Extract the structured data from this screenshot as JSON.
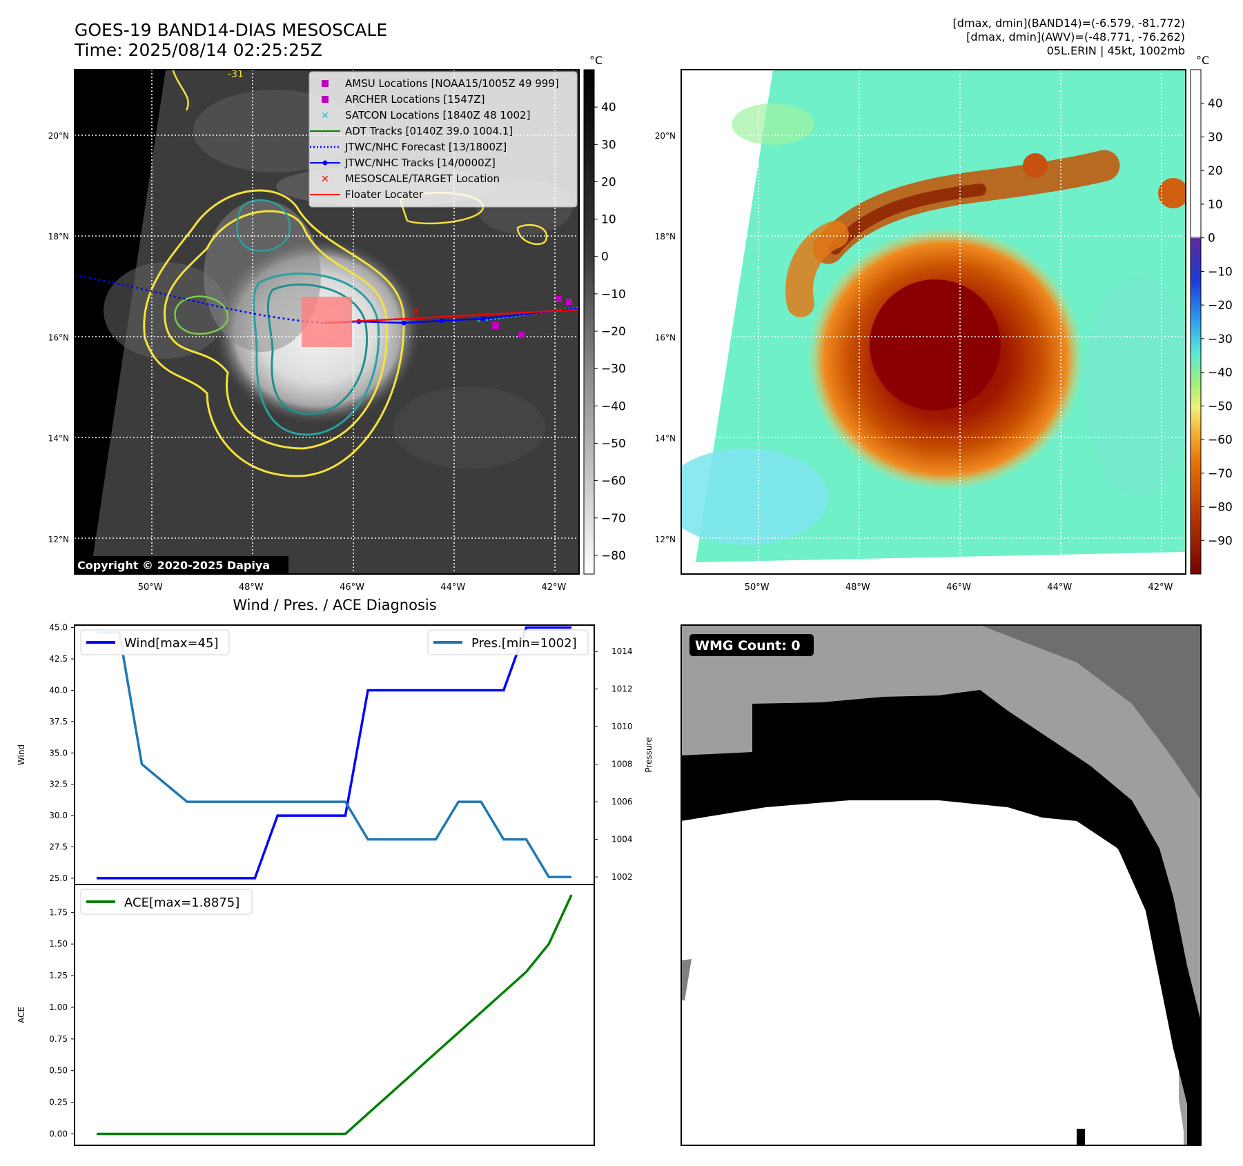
{
  "header": {
    "title_line1": "GOES-19 BAND14-DIAS MESOSCALE",
    "title_line2": "Time: 2025/08/14 02:25:25Z",
    "info_line1": "[dmax, dmin](BAND14)=(-6.579, -81.772)",
    "info_line2": "[dmax, dmin](AWV)=(-48.771, -76.262)",
    "info_line3": "05L.ERIN | 45kt, 1002mb"
  },
  "map_axes": {
    "lat_labels": [
      "20°N",
      "18°N",
      "16°N",
      "14°N",
      "12°N"
    ],
    "lat_values": [
      20,
      18,
      16,
      14,
      12
    ],
    "lon_labels": [
      "50°W",
      "48°W",
      "46°W",
      "44°W",
      "42°W"
    ],
    "lon_values": [
      -50,
      -48,
      -46,
      -44,
      -42
    ],
    "lat_range": [
      11.3,
      21.3
    ],
    "lon_range": [
      -51.5,
      -41.5
    ]
  },
  "ir_panel": {
    "copyright": "Copyright © 2020-2025 Dapiya",
    "contour_label": "-31",
    "legend": [
      {
        "label": "AMSU Locations [NOAA15/1005Z 49 999]",
        "marker": "square",
        "color": "#c000c0"
      },
      {
        "label": "ARCHER Locations [1547Z]",
        "marker": "square",
        "color": "#c000c0"
      },
      {
        "label": "SATCON Locations [1840Z 48 1002]",
        "marker": "x",
        "color": "#17becf"
      },
      {
        "label": "ADT Tracks [0140Z 39.0 1004.1]",
        "marker": "line",
        "color": "#008000"
      },
      {
        "label": "JTWC/NHC Forecast [13/1800Z]",
        "marker": "dotted",
        "color": "#0000ff"
      },
      {
        "label": "JTWC/NHC Tracks [14/0000Z]",
        "marker": "line-dot",
        "color": "#0000ff"
      },
      {
        "label": "MESOSCALE/TARGET Location",
        "marker": "x",
        "color": "#ff0000"
      },
      {
        "label": "Floater Locater",
        "marker": "line",
        "color": "#ff0000"
      }
    ],
    "colorbar_unit": "°C",
    "colorbar_ticks": [
      "40",
      "30",
      "20",
      "10",
      "0",
      "−10",
      "−20",
      "−30",
      "−40",
      "−50",
      "−60",
      "−70",
      "−80"
    ],
    "colorbar_values": [
      40,
      30,
      20,
      10,
      0,
      -10,
      -20,
      -30,
      -40,
      -50,
      -60,
      -70,
      -80
    ],
    "colorbar_range": [
      -85,
      50
    ]
  },
  "awv_panel": {
    "colorbar_unit": "°C",
    "colorbar_ticks": [
      "40",
      "30",
      "20",
      "10",
      "0",
      "−10",
      "−20",
      "−30",
      "−40",
      "−50",
      "−60",
      "−70",
      "−80",
      "−90"
    ],
    "colorbar_values": [
      40,
      30,
      20,
      10,
      0,
      -10,
      -20,
      -30,
      -40,
      -50,
      -60,
      -70,
      -80,
      -90
    ],
    "colorbar_range": [
      -100,
      50
    ]
  },
  "diagnosis": {
    "title": "Wind / Pres. / ACE Diagnosis",
    "wind_ylabel": "Wind",
    "pressure_ylabel": "Pressure",
    "ace_ylabel": "ACE",
    "wind_legend": "Wind[max=45]",
    "pres_legend": "Pres.[min=1002]",
    "ace_legend": "ACE[max=1.8875]",
    "wind_ticks": [
      "45.0",
      "42.5",
      "40.0",
      "37.5",
      "35.0",
      "32.5",
      "30.0",
      "27.5",
      "25.0"
    ],
    "pres_ticks": [
      "1014",
      "1012",
      "1010",
      "1008",
      "1006",
      "1004",
      "1002"
    ],
    "ace_ticks": [
      "1.75",
      "1.50",
      "1.25",
      "1.00",
      "0.75",
      "0.50",
      "0.25",
      "0.00"
    ]
  },
  "wmg_panel": {
    "label": "WMG Count: 0"
  },
  "chart_data": [
    {
      "type": "line",
      "title": "Wind / Pres. / ACE Diagnosis",
      "x": [
        0,
        1,
        2,
        3,
        4,
        5,
        6,
        7,
        8,
        9,
        10,
        11,
        12,
        13,
        14,
        15,
        16,
        17,
        18,
        19,
        20,
        21
      ],
      "series": [
        {
          "name": "Wind[max=45]",
          "axis": "left",
          "color": "#0000ff",
          "values": [
            25,
            25,
            25,
            25,
            25,
            25,
            25,
            25,
            30,
            30,
            30,
            30,
            40,
            40,
            40,
            40,
            40,
            40,
            40,
            45,
            45,
            45
          ]
        },
        {
          "name": "Pres.[min=1002]",
          "axis": "right",
          "color": "#1f77b4",
          "values": [
            1015,
            1015,
            1008,
            1007,
            1006,
            1006,
            1006,
            1006,
            1006,
            1006,
            1006,
            1006,
            1004,
            1004,
            1004,
            1004,
            1006,
            1006,
            1004,
            1004,
            1002,
            1002
          ]
        }
      ],
      "ylabel": "Wind",
      "ylim": [
        24.5,
        45.2
      ],
      "y2label": "Pressure",
      "y2lim": [
        1001.6,
        1015.4
      ]
    },
    {
      "type": "line",
      "x": [
        0,
        1,
        2,
        3,
        4,
        5,
        6,
        7,
        8,
        9,
        10,
        11,
        12,
        13,
        14,
        15,
        16,
        17,
        18,
        19,
        20,
        21
      ],
      "series": [
        {
          "name": "ACE[max=1.8875]",
          "color": "#008000",
          "values": [
            0,
            0,
            0,
            0,
            0,
            0,
            0,
            0,
            0,
            0,
            0,
            0,
            0.16,
            0.32,
            0.48,
            0.64,
            0.8,
            0.96,
            1.12,
            1.28,
            1.5,
            1.8875
          ]
        }
      ],
      "ylabel": "ACE",
      "ylim": [
        -0.09,
        1.97
      ]
    }
  ]
}
